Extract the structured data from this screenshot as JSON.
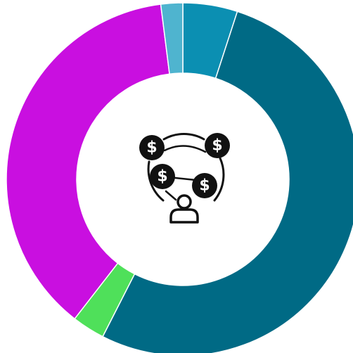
{
  "chart_data": {
    "type": "pie",
    "style": "donut",
    "title": "",
    "legend": "none",
    "slices": [
      {
        "value": 5.0,
        "color": "#0B8FB2"
      },
      {
        "value": 52.5,
        "color": "#006A85"
      },
      {
        "value": 3.0,
        "color": "#4FE05A"
      },
      {
        "value": 37.5,
        "color": "#C90FE0"
      },
      {
        "value": 2.0,
        "color": "#4FB4CF"
      }
    ]
  },
  "center_icon": {
    "name": "money-network-icon",
    "color": "#111111",
    "currency_symbol": "$"
  }
}
